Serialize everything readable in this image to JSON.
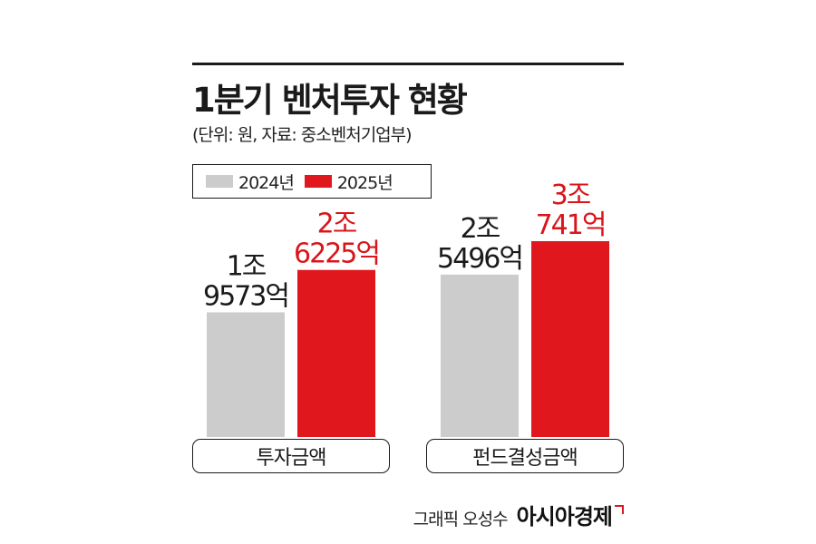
{
  "header": {
    "title": "1분기 벤처투자 현황",
    "subtitle": "(단위: 원, 자료: 중소벤처기업부)"
  },
  "legend": [
    {
      "label": "2024년",
      "color": "#cccccc"
    },
    {
      "label": "2025년",
      "color": "#e1171e"
    }
  ],
  "chart_data": {
    "type": "bar",
    "title": "1분기 벤처투자 현황",
    "subtitle": "(단위: 원, 자료: 중소벤처기업부)",
    "categories": [
      "투자금액",
      "펀드결성금액"
    ],
    "series": [
      {
        "name": "2024년",
        "color": "#cccccc",
        "values": [
          19573,
          25496
        ],
        "labels": [
          [
            "1조",
            "9573억"
          ],
          [
            "2조",
            "5496억"
          ]
        ]
      },
      {
        "name": "2025년",
        "color": "#e1171e",
        "values": [
          26225,
          30741
        ],
        "labels": [
          [
            "2조",
            "6225억"
          ],
          [
            "3조",
            "741억"
          ]
        ]
      }
    ],
    "unit": "억원",
    "legend_position": "top-left",
    "grid": false
  },
  "credit": {
    "text": "그래픽 오성수",
    "brand": "아시아경제"
  }
}
